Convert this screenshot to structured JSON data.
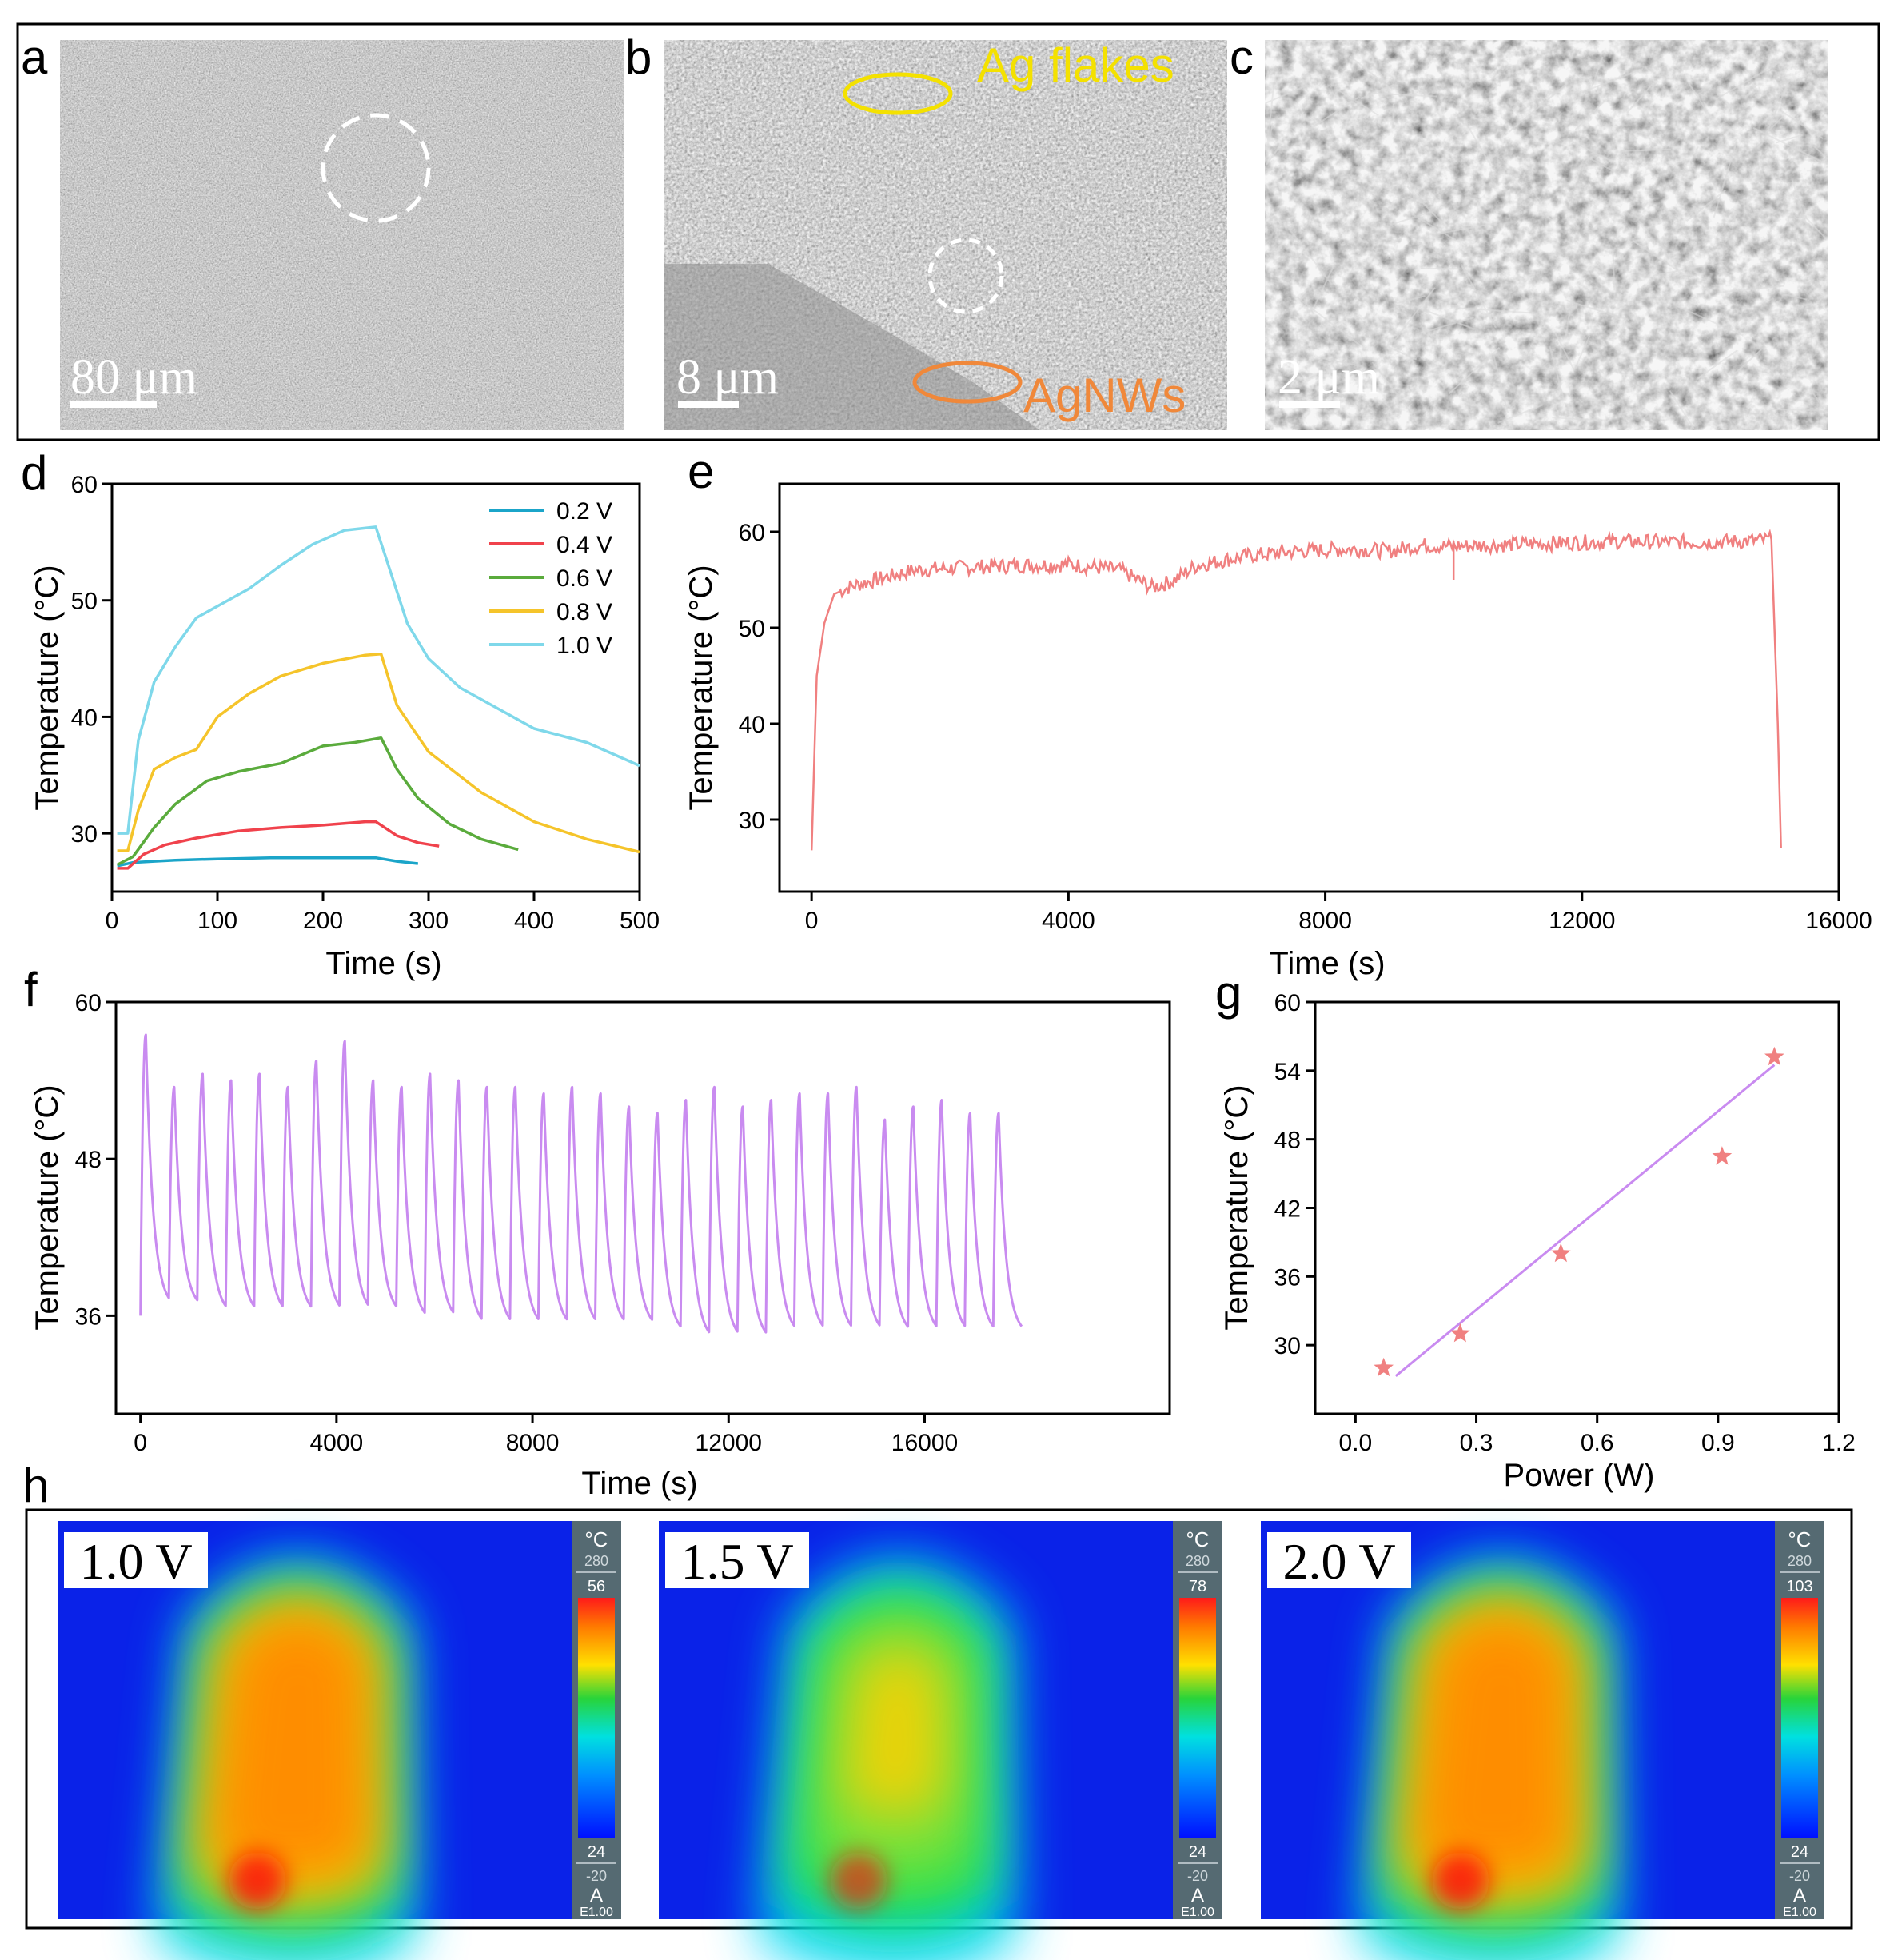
{
  "figure": {
    "panel_letters": [
      "a",
      "b",
      "c",
      "d",
      "e",
      "f",
      "g",
      "h"
    ],
    "sem": {
      "a": {
        "scale_bar": "80 μm"
      },
      "b": {
        "scale_bar": "8 μm",
        "label_flakes": "Ag flakes",
        "label_wires": "AgNWs"
      },
      "c": {
        "scale_bar": "2 μm"
      }
    },
    "thermal": {
      "unit": "°C",
      "range_max": "280",
      "range_min": "-20",
      "mode": "A",
      "emissivity": "E1.00",
      "images": [
        {
          "voltage": "1.0 V",
          "scale_max": "56",
          "scale_min": "24",
          "hotspot": 0.82
        },
        {
          "voltage": "1.5 V",
          "scale_max": "78",
          "scale_min": "24",
          "hotspot": 0.62
        },
        {
          "voltage": "2.0 V",
          "scale_max": "103",
          "scale_min": "24",
          "hotspot": 0.82
        }
      ]
    }
  },
  "colors": {
    "v02": "#1ba5c9",
    "v04": "#f0424c",
    "v06": "#5aab3c",
    "v08": "#f5c42a",
    "v10": "#7fd8ea",
    "panel_e": "#f08080",
    "panel_f": "#c98bf0",
    "panel_g_line": "#c98bf0",
    "panel_g_marker": "#f08080",
    "label_flakes": "#f4e100",
    "label_wires": "#f0883a"
  },
  "chart_data": [
    {
      "id": "d",
      "type": "line",
      "xlabel": "Time (s)",
      "ylabel": "Temperature (°C)",
      "xlim": [
        0,
        500
      ],
      "ylim": [
        25,
        60
      ],
      "xticks": [
        "0",
        "100",
        "200",
        "300",
        "400",
        "500"
      ],
      "yticks": [
        "30",
        "40",
        "50",
        "60"
      ],
      "legend_position": "top-right",
      "series": [
        {
          "name": "0.2 V",
          "color": "#1ba5c9",
          "x": [
            5,
            20,
            40,
            60,
            100,
            150,
            200,
            250,
            270,
            290
          ],
          "y": [
            27.2,
            27.5,
            27.6,
            27.7,
            27.8,
            27.9,
            27.9,
            27.9,
            27.6,
            27.4
          ]
        },
        {
          "name": "0.4 V",
          "color": "#f0424c",
          "x": [
            5,
            15,
            30,
            50,
            80,
            120,
            160,
            200,
            240,
            250,
            270,
            290,
            310
          ],
          "y": [
            27.0,
            27.0,
            28.2,
            29.0,
            29.6,
            30.2,
            30.5,
            30.7,
            31.0,
            31.0,
            29.8,
            29.2,
            28.9
          ]
        },
        {
          "name": "0.6 V",
          "color": "#5aab3c",
          "x": [
            5,
            20,
            40,
            60,
            90,
            120,
            160,
            200,
            230,
            255,
            270,
            290,
            320,
            350,
            385
          ],
          "y": [
            27.3,
            28.0,
            30.5,
            32.5,
            34.5,
            35.3,
            36.0,
            37.5,
            37.8,
            38.2,
            35.5,
            33.0,
            30.8,
            29.5,
            28.6
          ]
        },
        {
          "name": "0.8 V",
          "color": "#f5c42a",
          "x": [
            5,
            15,
            25,
            40,
            60,
            80,
            100,
            130,
            160,
            200,
            240,
            255,
            270,
            300,
            350,
            400,
            450,
            500
          ],
          "y": [
            28.5,
            28.5,
            32.0,
            35.5,
            36.5,
            37.2,
            40.0,
            42.0,
            43.5,
            44.6,
            45.3,
            45.4,
            41.0,
            37.0,
            33.5,
            31.0,
            29.5,
            28.4
          ]
        },
        {
          "name": "1.0 V",
          "color": "#7fd8ea",
          "x": [
            5,
            15,
            25,
            40,
            60,
            80,
            100,
            130,
            160,
            190,
            220,
            250,
            262,
            280,
            300,
            330,
            370,
            400,
            450,
            500
          ],
          "y": [
            30.0,
            30.0,
            38.0,
            43.0,
            46.0,
            48.5,
            49.5,
            51.0,
            53.0,
            54.8,
            56.0,
            56.3,
            53.0,
            48.0,
            45.0,
            42.5,
            40.5,
            39.0,
            37.8,
            35.8
          ]
        }
      ]
    },
    {
      "id": "e",
      "type": "line",
      "xlabel": "Time (s)",
      "ylabel": "Temperature (°C)",
      "xlim": [
        -500,
        16000
      ],
      "ylim": [
        22.5,
        65
      ],
      "xticks": [
        "0",
        "4000",
        "8000",
        "12000",
        "16000"
      ],
      "yticks": [
        "30",
        "40",
        "50",
        "60"
      ],
      "series": [
        {
          "name": "temperature",
          "color": "#f08080",
          "x": [
            0,
            80,
            200,
            350,
            600,
            1000,
            1600,
            2400,
            3200,
            4000,
            4800,
            5300,
            5600,
            6000,
            6800,
            7600,
            8400,
            9000,
            9500,
            10000,
            10500,
            11500,
            12500,
            13500,
            14500,
            14950,
            15050,
            15100
          ],
          "y": [
            26.8,
            45.0,
            50.5,
            53.5,
            54.3,
            55.0,
            56.0,
            56.3,
            56.5,
            56.6,
            56.0,
            54.2,
            54.8,
            56.5,
            57.5,
            58.0,
            58.2,
            58.0,
            58.6,
            58.5,
            58.6,
            58.8,
            59.0,
            58.9,
            59.0,
            59.2,
            40.0,
            27.0
          ]
        }
      ]
    },
    {
      "id": "f",
      "type": "line",
      "xlabel": "Time (s)",
      "ylabel": "Temperature (°C)",
      "xlim": [
        -500,
        21000
      ],
      "ylim": [
        28.5,
        60
      ],
      "xticks": [
        "0",
        "4000",
        "8000",
        "12000",
        "16000"
      ],
      "yticks": [
        "36",
        "48",
        "60"
      ],
      "cycles": 31,
      "cycle_period_s": 580,
      "cycle_peaks": [
        57.5,
        53.5,
        54.5,
        54,
        54.5,
        53.5,
        55.5,
        57,
        54,
        53.5,
        54.5,
        54,
        53.5,
        53.5,
        53,
        53.5,
        53,
        52,
        51.5,
        52.5,
        53.5,
        52,
        52.5,
        53,
        53,
        53.5,
        51,
        52,
        52.5,
        51.5,
        51.5
      ],
      "cycle_lows": [
        36.5,
        36.5,
        36,
        36,
        36,
        36,
        36,
        36,
        36,
        35.5,
        35.5,
        35,
        35,
        35,
        35,
        35,
        35,
        35,
        34.5,
        34,
        34,
        34,
        34.5,
        34.5,
        34.5,
        34.5,
        34.5,
        34.5,
        34.5,
        34.5,
        34.5
      ]
    },
    {
      "id": "g",
      "type": "scatter",
      "xlabel": "Power (W)",
      "ylabel": "Temperature (°C)",
      "xlim": [
        -0.1,
        1.2
      ],
      "ylim": [
        24,
        60
      ],
      "xticks": [
        "0.0",
        "0.3",
        "0.6",
        "0.9",
        "1.2"
      ],
      "yticks": [
        "30",
        "36",
        "42",
        "48",
        "54",
        "60"
      ],
      "points": {
        "x": [
          0.07,
          0.26,
          0.51,
          0.91,
          1.04
        ],
        "y": [
          28.0,
          31.0,
          38.0,
          46.5,
          55.2
        ]
      },
      "fit_line": {
        "x": [
          0.1,
          1.04
        ],
        "y": [
          27.3,
          54.5
        ]
      }
    }
  ]
}
